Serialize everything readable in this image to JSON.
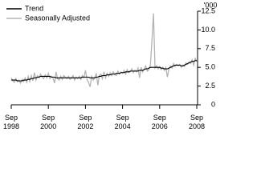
{
  "chart_data": {
    "type": "line",
    "y_label": "'000",
    "x": [
      "1998-09",
      "1998-10",
      "1998-11",
      "1998-12",
      "1999-01",
      "1999-02",
      "1999-03",
      "1999-04",
      "1999-05",
      "1999-06",
      "1999-07",
      "1999-08",
      "1999-09",
      "1999-10",
      "1999-11",
      "1999-12",
      "2000-01",
      "2000-02",
      "2000-03",
      "2000-04",
      "2000-05",
      "2000-06",
      "2000-07",
      "2000-08",
      "2000-09",
      "2000-10",
      "2000-11",
      "2000-12",
      "2001-01",
      "2001-02",
      "2001-03",
      "2001-04",
      "2001-05",
      "2001-06",
      "2001-07",
      "2001-08",
      "2001-09",
      "2001-10",
      "2001-11",
      "2001-12",
      "2002-01",
      "2002-02",
      "2002-03",
      "2002-04",
      "2002-05",
      "2002-06",
      "2002-07",
      "2002-08",
      "2002-09",
      "2002-10",
      "2002-11",
      "2002-12",
      "2003-01",
      "2003-02",
      "2003-03",
      "2003-04",
      "2003-05",
      "2003-06",
      "2003-07",
      "2003-08",
      "2003-09",
      "2003-10",
      "2003-11",
      "2003-12",
      "2004-01",
      "2004-02",
      "2004-03",
      "2004-04",
      "2004-05",
      "2004-06",
      "2004-07",
      "2004-08",
      "2004-09",
      "2004-10",
      "2004-11",
      "2004-12",
      "2005-01",
      "2005-02",
      "2005-03",
      "2005-04",
      "2005-05",
      "2005-06",
      "2005-07",
      "2005-08",
      "2005-09",
      "2005-10",
      "2005-11",
      "2005-12",
      "2006-01",
      "2006-02",
      "2006-03",
      "2006-04",
      "2006-05",
      "2006-06",
      "2006-07",
      "2006-08",
      "2006-09",
      "2006-10",
      "2006-11",
      "2006-12",
      "2007-01",
      "2007-02",
      "2007-03",
      "2007-04",
      "2007-05",
      "2007-06",
      "2007-07",
      "2007-08",
      "2007-09",
      "2007-10",
      "2007-11",
      "2007-12",
      "2008-01",
      "2008-02",
      "2008-03",
      "2008-04",
      "2008-05",
      "2008-06",
      "2008-07",
      "2008-08",
      "2008-09"
    ],
    "series": [
      {
        "name": "Trend",
        "color": "#000000",
        "values": [
          3.3,
          3.3,
          3.3,
          3.3,
          3.2,
          3.2,
          3.2,
          3.2,
          3.3,
          3.3,
          3.3,
          3.4,
          3.4,
          3.5,
          3.5,
          3.6,
          3.6,
          3.7,
          3.7,
          3.8,
          3.8,
          3.8,
          3.8,
          3.8,
          3.8,
          3.8,
          3.7,
          3.7,
          3.7,
          3.6,
          3.6,
          3.6,
          3.6,
          3.6,
          3.6,
          3.6,
          3.6,
          3.6,
          3.6,
          3.6,
          3.6,
          3.6,
          3.6,
          3.6,
          3.6,
          3.6,
          3.7,
          3.7,
          3.7,
          3.7,
          3.7,
          3.6,
          3.6,
          3.6,
          3.6,
          3.7,
          3.7,
          3.8,
          3.8,
          3.9,
          3.9,
          3.9,
          4.0,
          4.0,
          4.0,
          4.1,
          4.1,
          4.1,
          4.2,
          4.2,
          4.2,
          4.3,
          4.3,
          4.3,
          4.4,
          4.4,
          4.4,
          4.5,
          4.5,
          4.5,
          4.5,
          4.5,
          4.5,
          4.6,
          4.6,
          4.6,
          4.7,
          4.8,
          4.8,
          4.9,
          5.0,
          5.0,
          5.0,
          5.0,
          5.0,
          5.0,
          5.0,
          4.9,
          4.9,
          4.8,
          4.8,
          4.8,
          4.9,
          5.0,
          5.1,
          5.2,
          5.3,
          5.3,
          5.3,
          5.3,
          5.2,
          5.2,
          5.3,
          5.4,
          5.5,
          5.6,
          5.7,
          5.8,
          5.8,
          5.9,
          5.9
        ]
      },
      {
        "name": "Seasonally Adjusted",
        "color": "#b3b3b3",
        "values": [
          3.6,
          3.2,
          3.0,
          3.5,
          3.1,
          3.3,
          2.9,
          3.4,
          3.1,
          3.6,
          3.0,
          3.8,
          3.1,
          3.9,
          3.2,
          4.3,
          3.3,
          3.9,
          3.6,
          4.1,
          3.7,
          3.5,
          4.0,
          3.6,
          4.2,
          3.5,
          3.8,
          3.6,
          2.9,
          4.4,
          3.5,
          3.3,
          3.8,
          3.4,
          3.9,
          3.7,
          3.5,
          3.8,
          3.4,
          3.6,
          3.9,
          3.3,
          3.7,
          3.5,
          3.8,
          3.4,
          3.9,
          3.6,
          4.6,
          3.4,
          3.0,
          2.4,
          3.8,
          3.3,
          3.6,
          4.2,
          2.6,
          3.9,
          4.1,
          3.5,
          4.4,
          3.6,
          4.2,
          3.8,
          4.3,
          3.9,
          4.4,
          4.0,
          3.9,
          4.5,
          4.1,
          4.4,
          4.2,
          4.6,
          4.1,
          4.7,
          4.3,
          4.4,
          4.8,
          4.3,
          4.6,
          4.4,
          4.9,
          3.6,
          5.0,
          4.4,
          4.8,
          5.2,
          4.5,
          4.7,
          5.3,
          8.5,
          12.2,
          4.9,
          5.2,
          4.8,
          5.1,
          4.7,
          5.0,
          4.6,
          5.0,
          3.7,
          4.8,
          5.2,
          4.9,
          5.5,
          5.1,
          5.4,
          5.2,
          5.4,
          5.0,
          5.3,
          5.1,
          5.6,
          5.4,
          5.7,
          5.5,
          6.0,
          5.3,
          6.2,
          5.8
        ]
      }
    ],
    "ylim": [
      0,
      12.5
    ],
    "yticks": [
      0,
      2.5,
      {
        "value": 5,
        "label": "5.0"
      },
      7.5,
      {
        "value": 10,
        "label": "10.0"
      },
      12.5
    ],
    "xticks": [
      {
        "value": "1998-09",
        "label": "Sep 1998"
      },
      {
        "value": "2000-09",
        "label": "Sep 2000"
      },
      {
        "value": "2002-09",
        "label": "Sep 2002"
      },
      {
        "value": "2004-09",
        "label": "Sep 2004"
      },
      {
        "value": "2006-09",
        "label": "Sep 2006"
      },
      {
        "value": "2008-09",
        "label": "Sep 2008"
      }
    ],
    "legend": "top-left"
  }
}
